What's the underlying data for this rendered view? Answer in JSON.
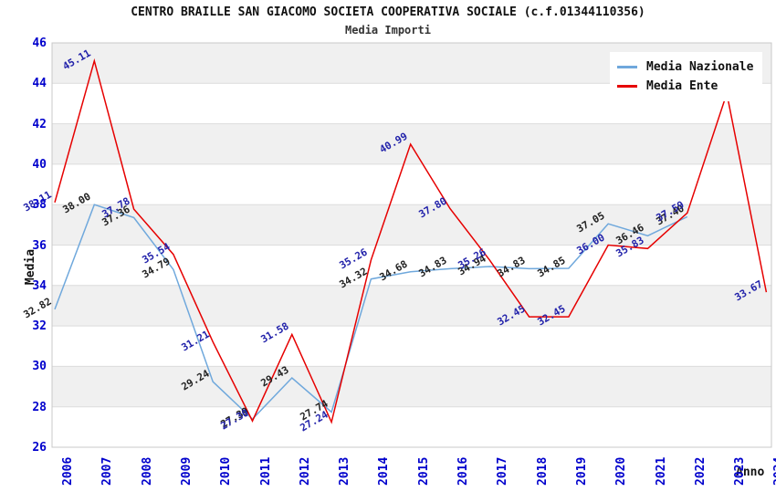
{
  "title": "CENTRO BRAILLE SAN GIACOMO SOCIETA COOPERATIVA SOCIALE (c.f.01344110356)",
  "subtitle": "Media Importi",
  "axes": {
    "y_label": "Media",
    "x_label": "Anno",
    "y_ticks": [
      "26",
      "28",
      "30",
      "32",
      "34",
      "36",
      "38",
      "40",
      "42",
      "44",
      "46"
    ],
    "x_ticks": [
      "2006",
      "2007",
      "2008",
      "2009",
      "2010",
      "2011",
      "2012",
      "2013",
      "2014",
      "2015",
      "2016",
      "2017",
      "2018",
      "2019",
      "2020",
      "2021",
      "2022",
      "2023",
      "2024"
    ],
    "tick_color": "#0000cc"
  },
  "legend": {
    "position": "top-right",
    "items": [
      {
        "label": "Media Nazionale",
        "color": "#6fa8dc"
      },
      {
        "label": "Media Ente",
        "color": "#e60000"
      }
    ]
  },
  "chart_data": {
    "type": "line",
    "x": [
      2006,
      2007,
      2008,
      2009,
      2010,
      2011,
      2012,
      2013,
      2014,
      2015,
      2016,
      2017,
      2018,
      2019,
      2020,
      2021,
      2022,
      2023,
      2024
    ],
    "ylim": [
      26,
      46
    ],
    "grid": "horizontal gridlines with alternating gray bands",
    "legend_position": "top-right",
    "series": [
      {
        "name": "Media Nazionale",
        "color": "#6fa8dc",
        "label_color": "#222222",
        "values": [
          32.82,
          38.0,
          37.36,
          34.79,
          29.24,
          27.39,
          29.43,
          27.74,
          34.32,
          34.68,
          34.83,
          34.94,
          34.83,
          34.85,
          37.05,
          36.46,
          37.4,
          null,
          null
        ],
        "labels": [
          "32.82",
          "38.00",
          "37.36",
          "34.79",
          "29.24",
          "27.39",
          "29.43",
          "27.74",
          "34.32",
          "34.68",
          "34.83",
          "34.94",
          "34.83",
          "34.85",
          "37.05",
          "36.46",
          "37.40",
          null,
          null
        ]
      },
      {
        "name": "Media Ente",
        "color": "#e60000",
        "label_color": "#2222aa",
        "values": [
          38.11,
          45.11,
          37.78,
          35.54,
          31.21,
          27.3,
          31.58,
          27.24,
          35.26,
          40.99,
          37.8,
          35.26,
          32.45,
          32.45,
          36.0,
          35.83,
          37.59,
          43.5,
          33.67
        ],
        "labels": [
          "38.11",
          "45.11",
          "37.78",
          "35.54",
          "31.21",
          "27.30",
          "31.58",
          "27.24",
          "35.26",
          "40.99",
          "37.80",
          "35.26",
          "32.45",
          "32.45",
          "36.00",
          "35.83",
          "37.59",
          null,
          "33.67"
        ]
      }
    ]
  },
  "style_colors": {
    "band_gray": "#f0f0f0",
    "gridline": "#dcdcdc",
    "plot_border": "#c8c8c8"
  }
}
